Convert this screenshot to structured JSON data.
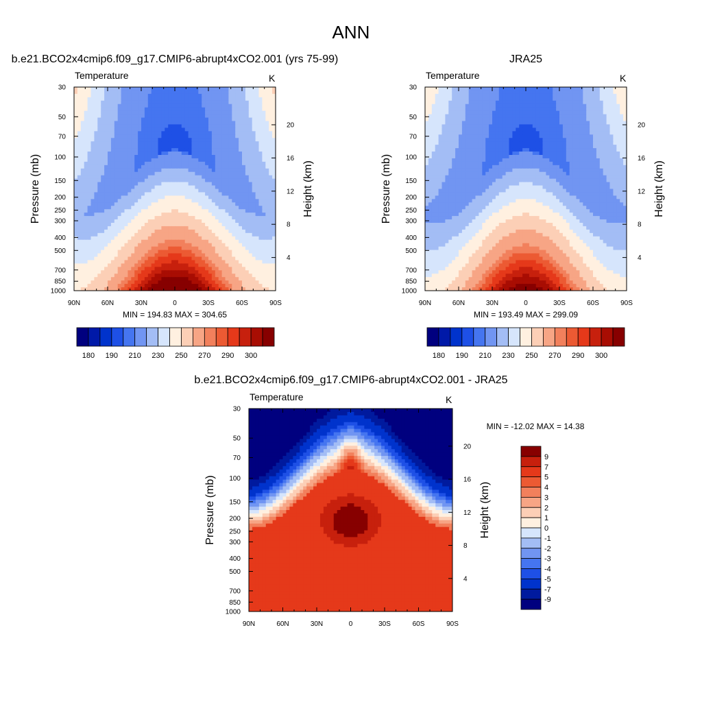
{
  "page": {
    "title": "ANN"
  },
  "colors": {
    "abs_palette": [
      "#00007f",
      "#0019a8",
      "#0033cc",
      "#1e50e6",
      "#4575f0",
      "#7195f2",
      "#a3bdf5",
      "#d6e5fc",
      "#fff0e0",
      "#fccfb6",
      "#f7a585",
      "#f2805c",
      "#ec5a33",
      "#e5391a",
      "#c7200d",
      "#a80d03",
      "#870000"
    ],
    "diff_palette": [
      "#00007f",
      "#001a9e",
      "#0033cc",
      "#1e50e6",
      "#4575f0",
      "#7195f2",
      "#a3bdf5",
      "#d6e5fc",
      "#fff0e0",
      "#fccfb6",
      "#f7a585",
      "#f2805c",
      "#ec5a33",
      "#e5391a",
      "#c7200d",
      "#870000"
    ]
  },
  "chart_data": [
    {
      "type": "heatmap",
      "title": "b.e21.BCO2x4cmip6.f09_g17.CMIP6-abrupt4xCO2.001 (yrs 75-99)",
      "left_label": "Temperature",
      "right_label": "K",
      "xlabel": "",
      "ylabel": "Pressure (mb)",
      "y2label": "Height (km)",
      "x_ticks": [
        "90N",
        "60N",
        "30N",
        "0",
        "30S",
        "60S",
        "90S"
      ],
      "y_ticks": [
        30,
        50,
        70,
        100,
        150,
        200,
        250,
        300,
        400,
        500,
        700,
        850,
        1000
      ],
      "y2_ticks": [
        20,
        16,
        12,
        8,
        4
      ],
      "xlim": [
        90,
        -90
      ],
      "ylim": [
        1000,
        30
      ],
      "stats": "MIN = 194.83  MAX = 304.65",
      "contour_levels": [
        180,
        185,
        190,
        200,
        210,
        220,
        230,
        240,
        250,
        260,
        270,
        275,
        280,
        285,
        290,
        295,
        300
      ],
      "colorbar_labels": [
        "180",
        "190",
        "210",
        "230",
        "250",
        "270",
        "290",
        "300"
      ],
      "min": 194.83,
      "max": 304.65
    },
    {
      "type": "heatmap",
      "title": "JRA25",
      "left_label": "Temperature",
      "right_label": "K",
      "xlabel": "",
      "ylabel": "Pressure (mb)",
      "y2label": "Height (km)",
      "x_ticks": [
        "90N",
        "60N",
        "30N",
        "0",
        "30S",
        "60S",
        "90S"
      ],
      "y_ticks": [
        30,
        50,
        70,
        100,
        150,
        200,
        250,
        300,
        400,
        500,
        700,
        850,
        1000
      ],
      "y2_ticks": [
        20,
        16,
        12,
        8,
        4
      ],
      "xlim": [
        90,
        -90
      ],
      "ylim": [
        1000,
        30
      ],
      "stats": "MIN = 193.49  MAX = 299.09",
      "contour_levels": [
        180,
        185,
        190,
        200,
        210,
        220,
        230,
        240,
        250,
        260,
        270,
        275,
        280,
        285,
        290,
        295,
        300
      ],
      "colorbar_labels": [
        "180",
        "190",
        "210",
        "230",
        "250",
        "270",
        "290",
        "300"
      ],
      "min": 193.49,
      "max": 299.09
    },
    {
      "type": "heatmap",
      "title": "b.e21.BCO2x4cmip6.f09_g17.CMIP6-abrupt4xCO2.001 - JRA25",
      "left_label": "Temperature",
      "right_label": "K",
      "xlabel": "",
      "ylabel": "Pressure (mb)",
      "y2label": "Height (km)",
      "x_ticks": [
        "90N",
        "60N",
        "30N",
        "0",
        "30S",
        "60S",
        "90S"
      ],
      "y_ticks": [
        30,
        50,
        70,
        100,
        150,
        200,
        250,
        300,
        400,
        500,
        700,
        850,
        1000
      ],
      "y2_ticks": [
        20,
        16,
        12,
        8,
        4
      ],
      "xlim": [
        90,
        -90
      ],
      "ylim": [
        1000,
        30
      ],
      "stats": "MIN = -12.02  MAX =  14.38",
      "contour_levels": [
        -9,
        -7,
        -5,
        -4,
        -3,
        -2,
        -1,
        0,
        1,
        2,
        3,
        4,
        5,
        7,
        9
      ],
      "colorbar_labels": [
        "9",
        "7",
        "5",
        "4",
        "3",
        "2",
        "1",
        "0",
        "-1",
        "-2",
        "-3",
        "-4",
        "-5",
        "-7",
        "-9"
      ],
      "min": -12.02,
      "max": 14.38
    }
  ]
}
